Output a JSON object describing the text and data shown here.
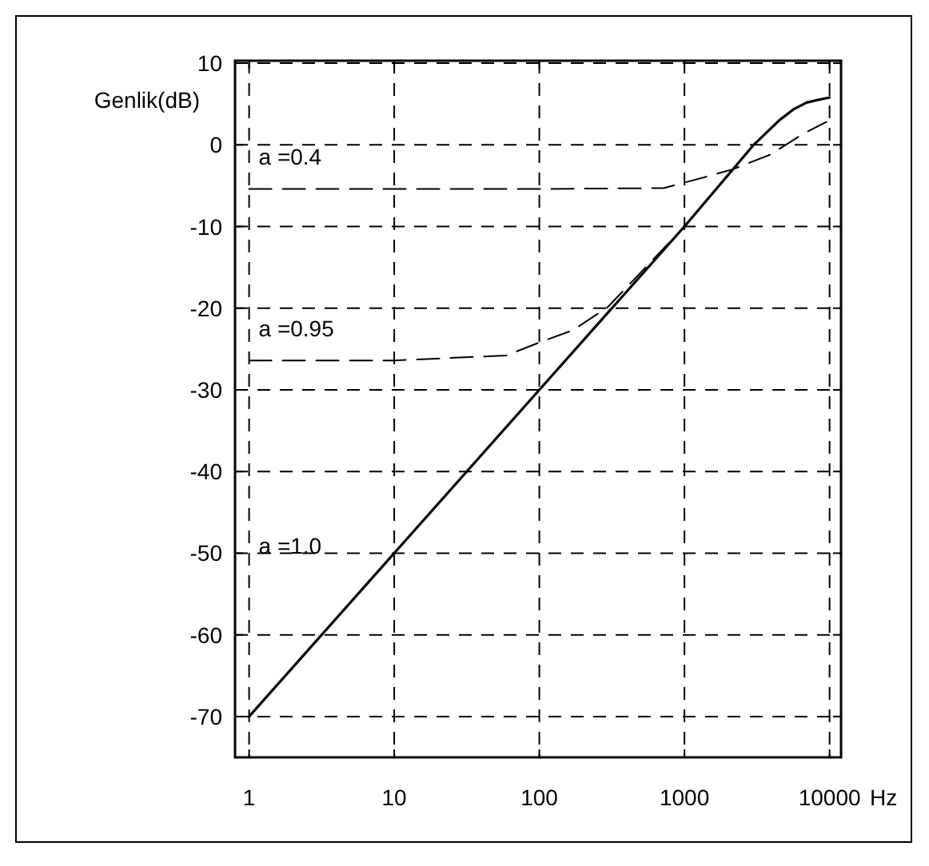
{
  "chart_data": {
    "type": "line",
    "ylabel": "Genlik(dB)",
    "xlabel": "Hz",
    "log": "x",
    "grid": true,
    "marker": "none",
    "xlim": [
      0.8,
      12000
    ],
    "ylim": [
      -75,
      10.3
    ],
    "xticks": [
      1,
      10,
      100,
      1000,
      10000
    ],
    "yticks": [
      -70,
      -60,
      -50,
      -40,
      -30,
      -20,
      -10,
      0,
      10
    ],
    "series": [
      {
        "name": "a =0.4",
        "color": "#000000",
        "line_style": "dashed",
        "x": [
          1,
          10,
          100,
          718,
          1350,
          2150,
          3900,
          6500,
          9500
        ],
        "values": [
          -5.4,
          -5.4,
          -5.4,
          -5.3,
          -4,
          -3,
          -1.2,
          1.3,
          2.8
        ]
      },
      {
        "name": "a =0.95",
        "color": "#000000",
        "line_style": "dashed",
        "x": [
          1,
          10,
          59,
          100,
          170,
          295,
          1000,
          3000,
          4500,
          5700,
          7000,
          10000
        ],
        "values": [
          -26.4,
          -26.4,
          -25.8,
          -24.2,
          -22.7,
          -19.9,
          -10,
          0,
          3,
          4.4,
          5.2,
          5.8
        ]
      },
      {
        "name": "a =1.0",
        "color": "#000000",
        "line_style": "solid",
        "x": [
          1,
          10,
          100,
          1000,
          3000,
          4500,
          5700,
          7000,
          10000
        ],
        "values": [
          -70,
          -50,
          -30,
          -10,
          0,
          3,
          4.4,
          5.2,
          5.8
        ]
      }
    ]
  }
}
